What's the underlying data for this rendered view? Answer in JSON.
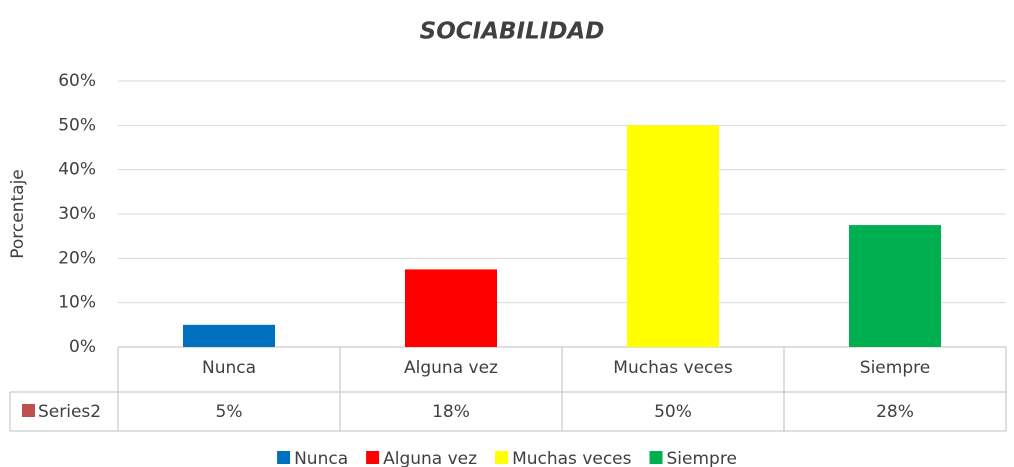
{
  "chart_data": {
    "type": "bar",
    "title": "SOCIABILIDAD",
    "y_label": "Porcentaje",
    "categories": [
      "Nunca",
      "Alguna vez",
      "Muchas veces",
      "Siempre"
    ],
    "series": [
      {
        "name": "Series2",
        "color": "#c0504d",
        "values": [
          5,
          17.5,
          50,
          27.5
        ],
        "value_labels": [
          "5%",
          "18%",
          "50%",
          "28%"
        ],
        "colors": [
          "#0070c0",
          "#ff0000",
          "#ffff00",
          "#00b050"
        ]
      }
    ],
    "ylim": [
      0,
      60
    ],
    "yticks": [
      {
        "value": 0,
        "label": "0%"
      },
      {
        "value": 10,
        "label": "10%"
      },
      {
        "value": 20,
        "label": "20%"
      },
      {
        "value": 30,
        "label": "30%"
      },
      {
        "value": 40,
        "label": "40%"
      },
      {
        "value": 50,
        "label": "50%"
      },
      {
        "value": 60,
        "label": "60%"
      }
    ],
    "grid": true,
    "data_table": true,
    "legend": "bottom"
  }
}
